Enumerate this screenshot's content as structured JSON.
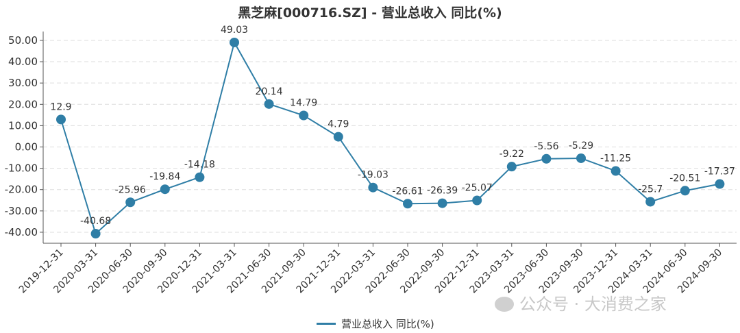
{
  "colors": {
    "line": "#2f7ea6",
    "grid": "#dddddd",
    "axis": "#555555",
    "text": "#333333"
  },
  "watermark": {
    "text": "公众号 · 大消费之家",
    "icon": "wechat-icon"
  },
  "chart_data": {
    "type": "line",
    "title": "黑芝麻[000716.SZ] - 营业总收入 同比(%)",
    "xlabel": "",
    "ylabel": "",
    "ylim": [
      -45,
      55
    ],
    "yticks": [
      "50.00",
      "40.00",
      "30.00",
      "20.00",
      "10.00",
      "0.00",
      "-10.00",
      "-20.00",
      "-30.00",
      "-40.00"
    ],
    "ytick_values": [
      50,
      40,
      30,
      20,
      10,
      0,
      -10,
      -20,
      -30,
      -40
    ],
    "grid": true,
    "legend_position": "bottom-center",
    "categories": [
      "2019-12-31",
      "2020-03-31",
      "2020-06-30",
      "2020-09-30",
      "2020-12-31",
      "2021-03-31",
      "2021-06-30",
      "2021-09-30",
      "2021-12-31",
      "2022-03-31",
      "2022-06-30",
      "2022-09-30",
      "2022-12-31",
      "2023-03-31",
      "2023-06-30",
      "2023-09-30",
      "2023-12-31",
      "2024-03-31",
      "2024-06-30",
      "2024-09-30"
    ],
    "series": [
      {
        "name": "营业总收入 同比(%)",
        "values": [
          12.9,
          -40.68,
          -25.96,
          -19.84,
          -14.18,
          49.03,
          20.14,
          14.79,
          4.79,
          -19.03,
          -26.61,
          -26.39,
          -25.07,
          -9.22,
          -5.56,
          -5.29,
          -11.25,
          -25.7,
          -20.51,
          -17.37
        ],
        "labels": [
          "12.9",
          "-40.68",
          "-25.96",
          "-19.84",
          "-14.18",
          "49.03",
          "20.14",
          "14.79",
          "4.79",
          "-19.03",
          "-26.61",
          "-26.39",
          "-25.07",
          "-9.22",
          "-5.56",
          "-5.29",
          "-11.25",
          "-25.7",
          "-20.51",
          "-17.37"
        ]
      }
    ]
  }
}
